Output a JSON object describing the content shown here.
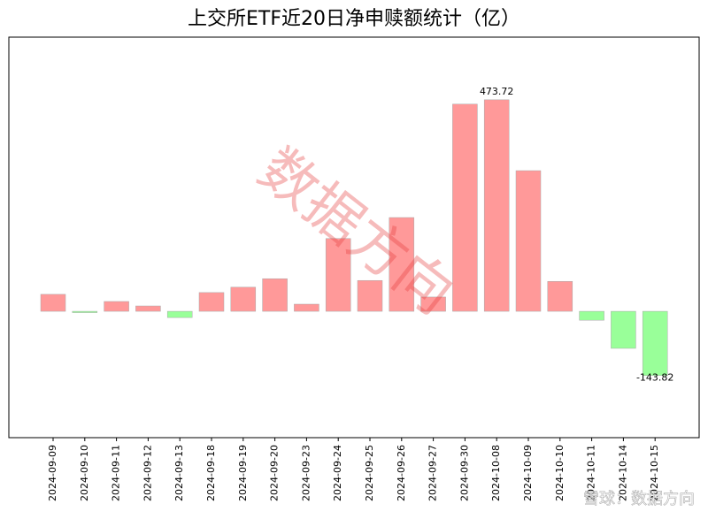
{
  "chart_data": {
    "type": "bar",
    "title": "上交所ETF近20日净申赎额统计（亿）",
    "categories": [
      "2024-09-09",
      "2024-09-10",
      "2024-09-11",
      "2024-09-12",
      "2024-09-13",
      "2024-09-18",
      "2024-09-19",
      "2024-09-20",
      "2024-09-23",
      "2024-09-24",
      "2024-09-25",
      "2024-09-26",
      "2024-09-27",
      "2024-09-30",
      "2024-10-08",
      "2024-10-09",
      "2024-10-10",
      "2024-10-11",
      "2024-10-14",
      "2024-10-15"
    ],
    "values": [
      38,
      -3,
      22,
      12,
      -14,
      42,
      54,
      73,
      16,
      163,
      69,
      210,
      32,
      464,
      473.72,
      315,
      67,
      -20,
      -83,
      -143.82
    ],
    "color_positive": "#ff9999",
    "color_negative": "#99ff99",
    "ylim": [
      -283,
      614
    ],
    "watermark": "数据方向",
    "footer_watermark": "雪球：数据方向"
  }
}
